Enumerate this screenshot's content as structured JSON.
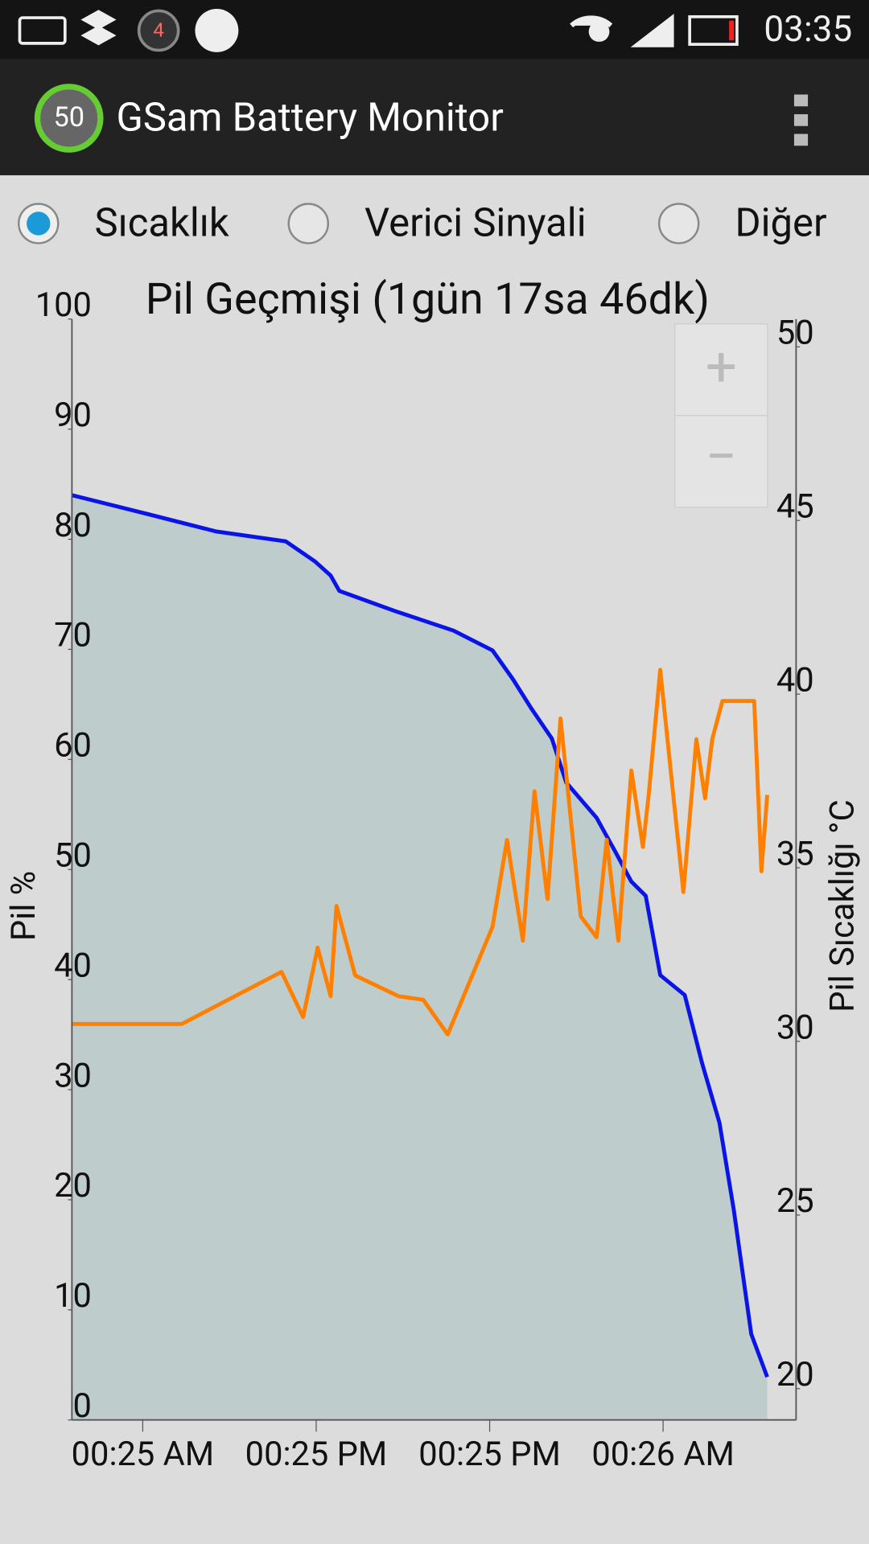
{
  "status_bar": {
    "notification_badge": "4",
    "time": "03:35"
  },
  "app_bar": {
    "icon_label": "50",
    "title": "GSam Battery Monitor"
  },
  "options": [
    {
      "label": "Sıcaklık",
      "selected": true
    },
    {
      "label": "Verici Sinyali",
      "selected": false
    },
    {
      "label": "Diğer",
      "selected": false
    }
  ],
  "zoom": {
    "in": "+",
    "out": "−"
  },
  "chart_data": {
    "type": "line",
    "title": "Pil Geçmişi (1gün 17sa 46dk)",
    "y_label": "Pil %",
    "y2_label": "Pil Sıcaklığı °C",
    "xlim": [
      0,
      50.1
    ],
    "xticks": [
      {
        "value": 4.9,
        "label": "00:25 AM"
      },
      {
        "value": 16.9,
        "label": "00:25 PM"
      },
      {
        "value": 28.9,
        "label": "00:25 PM"
      },
      {
        "value": 40.9,
        "label": "00:26 AM"
      }
    ],
    "ylim": [
      0,
      100
    ],
    "yticks": [
      0,
      10,
      20,
      30,
      40,
      50,
      60,
      70,
      80,
      90,
      100
    ],
    "y2lim": [
      19.1,
      50.8
    ],
    "y2ticks": [
      20,
      25,
      30,
      35,
      40,
      45,
      50
    ],
    "series": [
      {
        "name": "Pil %",
        "color": "#0a14e6",
        "fill": "#bfcccc",
        "axis": "y",
        "x": [
          0,
          5.2,
          10.0,
          14.8,
          16.8,
          17.9,
          18.5,
          22.3,
          26.4,
          29.1,
          30.5,
          31.8,
          33.2,
          34.2,
          36.3,
          37.6,
          38.7,
          39.7,
          40.7,
          42.4,
          43.6,
          44.8,
          45.8,
          47.0,
          48.1
        ],
        "values": [
          84.0,
          82.3,
          80.7,
          79.8,
          78.0,
          76.7,
          75.3,
          73.5,
          71.7,
          69.9,
          67.3,
          64.6,
          61.9,
          57.9,
          54.7,
          51.6,
          48.9,
          47.6,
          40.4,
          38.6,
          32.4,
          27.0,
          19.0,
          7.8,
          3.9
        ]
      },
      {
        "name": "Pil Sıcaklığı °C",
        "color": "#ff8000",
        "axis": "y2",
        "x": [
          0,
          7.6,
          14.5,
          16.0,
          17.0,
          17.9,
          18.3,
          19.6,
          22.6,
          24.3,
          26.0,
          29.1,
          30.1,
          31.2,
          32.0,
          32.9,
          33.8,
          35.2,
          36.3,
          37.0,
          37.8,
          38.7,
          39.5,
          39.9,
          40.7,
          42.3,
          43.2,
          43.8,
          44.3,
          45.0,
          47.2,
          47.7,
          48.1
        ],
        "values": [
          30.5,
          30.5,
          32.0,
          30.7,
          32.7,
          31.3,
          33.9,
          31.9,
          31.3,
          31.2,
          30.2,
          33.3,
          35.8,
          32.9,
          37.2,
          34.1,
          39.3,
          33.6,
          33.0,
          35.8,
          32.9,
          37.8,
          35.6,
          37.1,
          40.7,
          34.3,
          38.7,
          37.0,
          38.7,
          39.8,
          39.8,
          34.9,
          37.1
        ]
      }
    ]
  }
}
